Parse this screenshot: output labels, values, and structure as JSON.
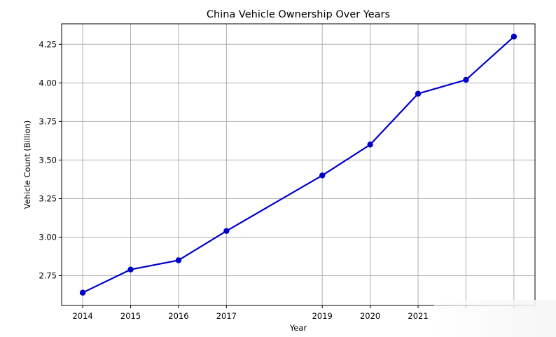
{
  "chart_data": {
    "type": "line",
    "title": "China Vehicle Ownership Over Years",
    "xlabel": "Year",
    "ylabel": "Vehicle Count (Billion)",
    "x": [
      2014,
      2015,
      2016,
      2017,
      2019,
      2020,
      2021,
      2022,
      2023
    ],
    "x_tick_labels": [
      "2014",
      "2015",
      "2016",
      "2017",
      "2019",
      "2020",
      "2021"
    ],
    "series": [
      {
        "values": [
          2.64,
          2.79,
          2.85,
          3.04,
          3.4,
          3.6,
          3.93,
          4.02,
          4.3
        ]
      }
    ],
    "y_ticks": [
      2.75,
      3.0,
      3.25,
      3.5,
      3.75,
      4.0,
      4.25
    ],
    "y_tick_labels": [
      "2.75",
      "3.00",
      "3.25",
      "3.50",
      "3.75",
      "4.00",
      "4.25"
    ],
    "xlim": [
      2013.56,
      2023.44
    ],
    "ylim": [
      2.557,
      4.383
    ],
    "grid": true,
    "colors": {
      "line": "#0000cc",
      "marker": "#0000cc",
      "grid": "#b0b0b0"
    }
  }
}
